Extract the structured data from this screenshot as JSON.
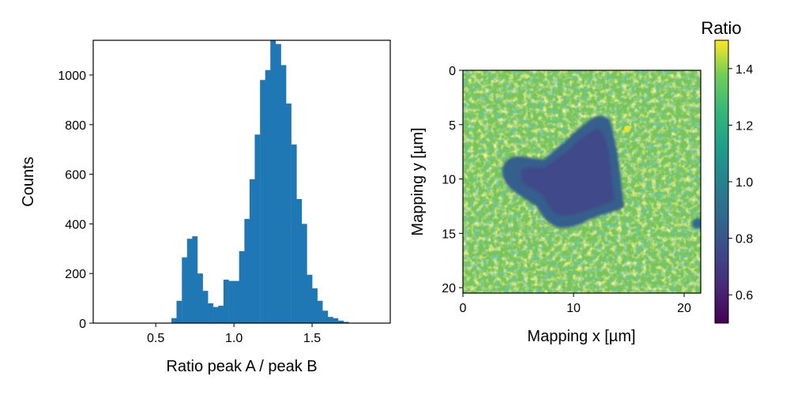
{
  "chart_data": [
    {
      "type": "bar",
      "subtype": "histogram",
      "xlabel": "Ratio peak A / peak B",
      "ylabel": "Counts",
      "xlim": [
        0.1,
        2.0
      ],
      "ylim": [
        0,
        1140
      ],
      "xticks": [
        0.5,
        1.0,
        1.5
      ],
      "xtick_labels": [
        "0.5",
        "1.0",
        "1.5"
      ],
      "yticks": [
        0,
        200,
        400,
        600,
        800,
        1000
      ],
      "ytick_labels": [
        "0",
        "200",
        "400",
        "600",
        "800",
        "1000"
      ],
      "bin_width": 0.0333,
      "bin_starts": [
        0.6,
        0.633,
        0.667,
        0.7,
        0.733,
        0.767,
        0.8,
        0.833,
        0.867,
        0.9,
        0.933,
        0.967,
        1.0,
        1.033,
        1.067,
        1.1,
        1.133,
        1.167,
        1.2,
        1.233,
        1.267,
        1.3,
        1.333,
        1.367,
        1.4,
        1.433,
        1.467,
        1.5,
        1.533,
        1.567,
        1.6,
        1.633,
        1.667,
        1.7
      ],
      "values": [
        20,
        90,
        265,
        340,
        350,
        200,
        130,
        80,
        65,
        70,
        175,
        170,
        170,
        290,
        420,
        580,
        760,
        980,
        1020,
        1140,
        1125,
        1040,
        885,
        720,
        500,
        400,
        195,
        140,
        90,
        50,
        25,
        20,
        10,
        5
      ],
      "bar_color": "#1f77b4",
      "grid": false
    },
    {
      "type": "heatmap",
      "xlabel": "Mapping x [µm]",
      "ylabel": "Mapping y [µm]",
      "xlim": [
        0,
        21.5
      ],
      "ylim": [
        20.5,
        0
      ],
      "xticks": [
        0,
        10,
        20
      ],
      "xtick_labels": [
        "0",
        "10",
        "20"
      ],
      "yticks": [
        0,
        5,
        10,
        15,
        20
      ],
      "ytick_labels": [
        "0",
        "5",
        "10",
        "15",
        "20"
      ],
      "colormap": "viridis",
      "colorbar": {
        "title": "Ratio",
        "range": [
          0.5,
          1.5
        ],
        "ticks": [
          0.6,
          0.8,
          1.0,
          1.2,
          1.4
        ],
        "tick_labels": [
          "0.6",
          "0.8",
          "1.0",
          "1.2",
          "1.4"
        ]
      },
      "background_value": 1.28,
      "region_value": 0.78,
      "grid": false
    }
  ]
}
